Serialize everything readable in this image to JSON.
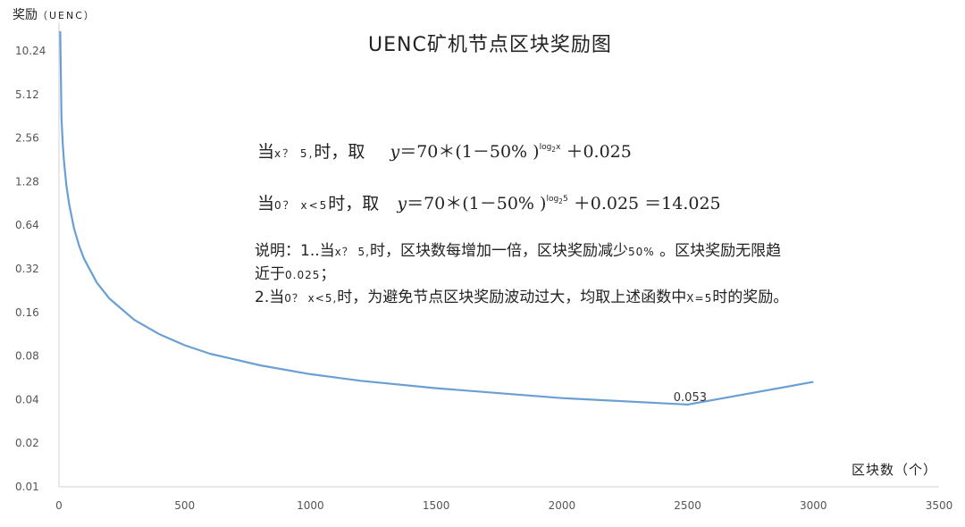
{
  "chart_data": {
    "type": "line",
    "title": "UENC矿机节点区块奖励图",
    "ylabel": "奖励",
    "ylabel_unit": "（UENC）",
    "xlabel": "区块数（个）",
    "xlim": [
      0,
      3500
    ],
    "ylim": [
      0.01,
      10.24
    ],
    "y_scale": "log2",
    "grid": false,
    "x_ticks": [
      "0",
      "500",
      "1000",
      "1500",
      "2000",
      "2500",
      "3000",
      "3500"
    ],
    "y_ticks": [
      "10.24",
      "5.12",
      "2.56",
      "1.28",
      "0.64",
      "0.32",
      "0.16",
      "0.08",
      "0.04",
      "0.02",
      "0.01"
    ],
    "series": [
      {
        "color": "#6a9fd4",
        "x": [
          5,
          10,
          15,
          20,
          30,
          40,
          60,
          80,
          100,
          150,
          200,
          300,
          400,
          500,
          600,
          800,
          1000,
          1200,
          1500,
          2000,
          2500,
          3000
        ],
        "y": [
          14.025,
          3.525,
          2.359,
          1.775,
          1.192,
          0.9,
          0.608,
          0.463,
          0.375,
          0.258,
          0.2,
          0.142,
          0.113,
          0.095,
          0.083,
          0.069,
          0.06,
          0.054,
          0.048,
          0.041,
          0.037,
          0.053
        ]
      }
    ],
    "annotations": [
      "0.053"
    ]
  },
  "formula1": {
    "prefix": "当",
    "cond": "x？ 5,",
    "suffix": "时，取",
    "lhs": "y",
    "body": "＝70＊(1－50% )",
    "exp_base": "log",
    "exp_sub": "2",
    "exp_sup": "x",
    "tail": "＋0.025"
  },
  "formula2": {
    "prefix": "当",
    "cond": "0？ x<5",
    "suffix": "时，取",
    "lhs": "y",
    "body": "＝70＊(1－50% )",
    "exp_base": "log",
    "exp_sub": "2",
    "exp_sup": "5",
    "tail": "＋0.025 ＝14.025"
  },
  "note": {
    "line1_a": "说明：1..当",
    "line1_b": "x？ 5,",
    "line1_c": "时，区块数每增加一倍，区块奖励减少",
    "line1_d": "50%",
    "line1_e": "。区块奖励无限趋",
    "line2_a": "近于",
    "line2_b": "0.025",
    "line2_c": "；",
    "line3_a": "2.当",
    "line3_b": "0？ x<5,",
    "line3_c": "时，为避免节点区块奖励波动过大，均取上述函数中",
    "line3_d": "X=5",
    "line3_e": "时的奖励。"
  }
}
